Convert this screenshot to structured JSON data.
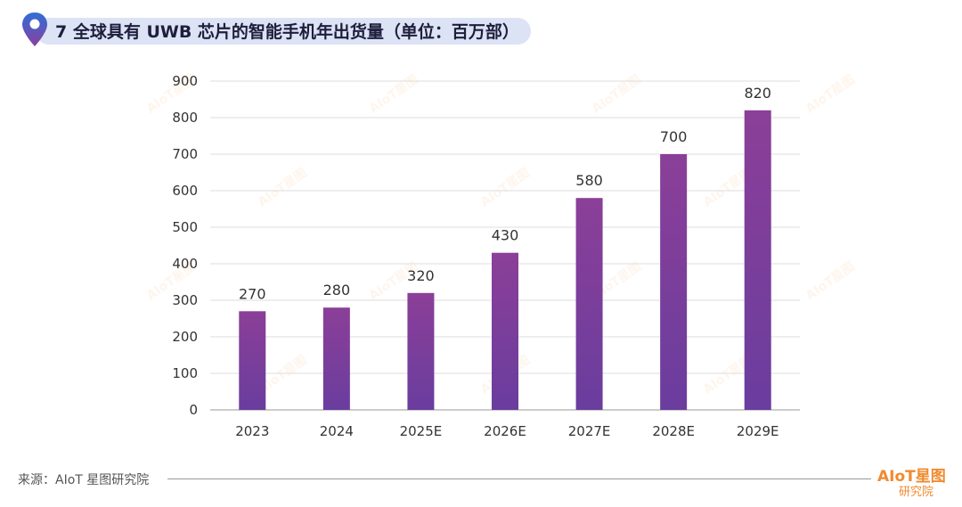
{
  "header": {
    "title": "7 全球具有 UWB 芯片的智能手机年出货量（单位：百万部）"
  },
  "chart_data": {
    "type": "bar",
    "categories": [
      "2023",
      "2024",
      "2025E",
      "2026E",
      "2027E",
      "2028E",
      "2029E"
    ],
    "values": [
      270,
      280,
      320,
      430,
      580,
      700,
      820
    ],
    "data_labels": [
      "270",
      "280",
      "320",
      "430",
      "580",
      "700",
      "820"
    ],
    "ylim": [
      0,
      900
    ],
    "yticks": [
      0,
      100,
      200,
      300,
      400,
      500,
      600,
      700,
      800,
      900
    ],
    "ytick_labels": [
      "0",
      "100",
      "200",
      "300",
      "400",
      "500",
      "600",
      "700",
      "800",
      "900"
    ],
    "grid": true,
    "bar_color_top": "#8b3f98",
    "bar_color_bottom": "#6a3d9e"
  },
  "footer": {
    "source": "来源：AIoT 星图研究院",
    "logo_main": "AIoT星图",
    "logo_sub": "研究院"
  },
  "watermark": {
    "text": "AIoT星图"
  },
  "colors": {
    "title_pill": "#dce3f5",
    "accent": "#f08a2e",
    "pin_gradient_start": "#2f6fd6",
    "pin_gradient_end": "#8b3fa0"
  }
}
